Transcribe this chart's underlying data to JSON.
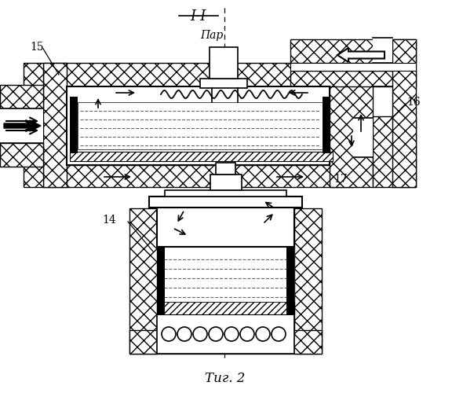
{
  "title_top": "I-I",
  "title_bottom": "Τиг. 2",
  "label_par": "Пар",
  "label_15": "15",
  "label_16": "16",
  "label_17": "17",
  "label_14": "14",
  "bg_color": "#ffffff",
  "line_color": "#000000",
  "fig_width": 5.76,
  "fig_height": 5.0,
  "dpi": 100
}
